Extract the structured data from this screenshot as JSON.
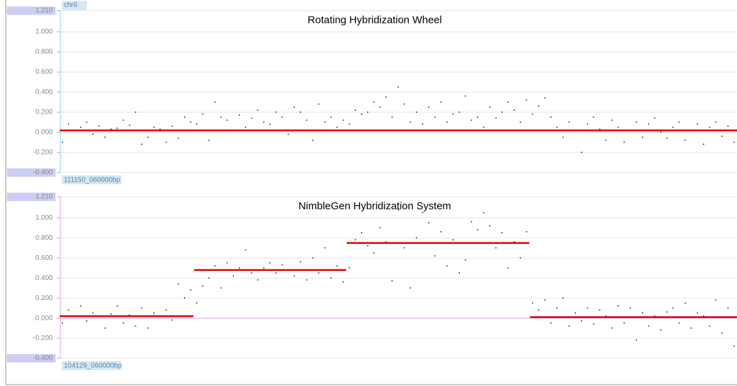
{
  "chart_data": [
    {
      "type": "scatter",
      "title": "Rotating Hybridization Wheel",
      "top_label": "chr6",
      "bottom_label": "111150_060000bp",
      "ylim": [
        -0.4,
        1.21
      ],
      "yticks": [
        {
          "value": 1.21,
          "label": "1.210"
        },
        {
          "value": 1.0,
          "label": "1.000"
        },
        {
          "value": 0.8,
          "label": "0.800"
        },
        {
          "value": 0.6,
          "label": "0.600"
        },
        {
          "value": 0.4,
          "label": "0.400"
        },
        {
          "value": 0.2,
          "label": "0.200"
        },
        {
          "value": 0,
          "label": "0.000"
        },
        {
          "value": -0.2,
          "label": "-0.200"
        },
        {
          "value": -0.4,
          "label": "-0.400"
        }
      ],
      "grid": true,
      "axis_color": "#7fd7e6",
      "color": "#222222",
      "segment_color": "#e00000",
      "values": [
        -0.1,
        0.08,
        0.02,
        0.05,
        0.1,
        -0.02,
        0.06,
        -0.05,
        0.03,
        0.04,
        0.12,
        0.07,
        0.2,
        -0.12,
        -0.05,
        0.05,
        0.03,
        -0.1,
        0.06,
        -0.06,
        0.15,
        0.1,
        0.08,
        0.18,
        -0.08,
        0.3,
        0.15,
        0.12,
        0.02,
        0.17,
        0.05,
        0.14,
        0.22,
        0.1,
        0.08,
        0.2,
        0.15,
        -0.02,
        0.25,
        0.2,
        0.12,
        -0.08,
        0.28,
        0.1,
        0.15,
        0.05,
        0.12,
        0.08,
        0.22,
        0.18,
        0.2,
        0.3,
        0.25,
        0.35,
        0.15,
        0.45,
        0.28,
        0.1,
        0.2,
        0.08,
        0.25,
        0.15,
        0.3,
        0.1,
        0.18,
        0.2,
        0.36,
        0.12,
        0.15,
        0.05,
        0.25,
        0.14,
        0.2,
        0.3,
        0.22,
        0.1,
        0.32,
        0.18,
        0.26,
        0.34,
        0.15,
        0.05,
        -0.05,
        0.1,
        0.02,
        -0.2,
        0.08,
        0.15,
        0.03,
        -0.08,
        0.12,
        0.05,
        -0.1,
        0.02,
        0.1,
        -0.05,
        0.08,
        0.14,
        0.0,
        -0.06,
        0.05,
        0.1,
        -0.08,
        0.02,
        0.08,
        -0.12,
        0.05,
        0.1,
        -0.04,
        0.06,
        -0.1
      ],
      "segments": [
        {
          "start": 0,
          "end": 110,
          "value": 0.02
        }
      ]
    },
    {
      "type": "scatter",
      "title": "NimbleGen Hybridization System",
      "bottom_label": "104129_060000bp",
      "ylim": [
        -0.4,
        1.21
      ],
      "yticks": [
        {
          "value": 1.21,
          "label": "1.210"
        },
        {
          "value": 1.0,
          "label": "1.000"
        },
        {
          "value": 0.8,
          "label": "0.800"
        },
        {
          "value": 0.6,
          "label": "0.600"
        },
        {
          "value": 0.4,
          "label": "0.400"
        },
        {
          "value": 0.2,
          "label": "0.200"
        },
        {
          "value": 0,
          "label": "0.000"
        },
        {
          "value": -0.2,
          "label": "-0.200"
        },
        {
          "value": -0.4,
          "label": "-0.400"
        }
      ],
      "grid": true,
      "axis_color": "#d9a6e8",
      "color": "#222222",
      "segment_color": "#e00000",
      "values": [
        -0.05,
        0.08,
        0.02,
        0.12,
        -0.03,
        0.05,
        0.02,
        -0.1,
        0.04,
        0.12,
        -0.05,
        0.03,
        -0.08,
        0.1,
        -0.1,
        0.05,
        0.02,
        0.08,
        -0.02,
        0.34,
        0.2,
        0.28,
        0.15,
        0.32,
        0.4,
        0.52,
        0.3,
        0.55,
        0.42,
        0.5,
        0.68,
        0.45,
        0.38,
        0.5,
        0.55,
        0.45,
        0.53,
        0.48,
        0.42,
        0.56,
        0.38,
        0.6,
        0.45,
        0.7,
        0.4,
        0.52,
        0.36,
        0.5,
        0.78,
        0.85,
        0.72,
        0.65,
        0.9,
        0.76,
        0.37,
        1.08,
        0.7,
        0.3,
        0.8,
        1.05,
        0.95,
        0.62,
        0.86,
        0.52,
        0.78,
        0.45,
        0.58,
        0.96,
        0.88,
        1.05,
        0.92,
        0.7,
        0.85,
        0.5,
        0.76,
        0.6,
        0.86,
        0.15,
        0.08,
        0.18,
        -0.05,
        0.1,
        0.2,
        -0.08,
        0.05,
        -0.03,
        0.1,
        -0.06,
        0.08,
        0.02,
        -0.1,
        0.12,
        -0.05,
        0.1,
        -0.22,
        0.05,
        -0.08,
        0.02,
        -0.12,
        0.06,
        0.1,
        -0.05,
        0.15,
        -0.1,
        0.05,
        0.02,
        -0.08,
        0.18,
        -0.15,
        0.1,
        -0.28
      ],
      "segments": [
        {
          "start": 0,
          "end": 21,
          "value": 0.02
        },
        {
          "start": 22,
          "end": 46,
          "value": 0.48
        },
        {
          "start": 47,
          "end": 76,
          "value": 0.75
        },
        {
          "start": 77,
          "end": 110,
          "value": 0.01
        }
      ]
    }
  ]
}
